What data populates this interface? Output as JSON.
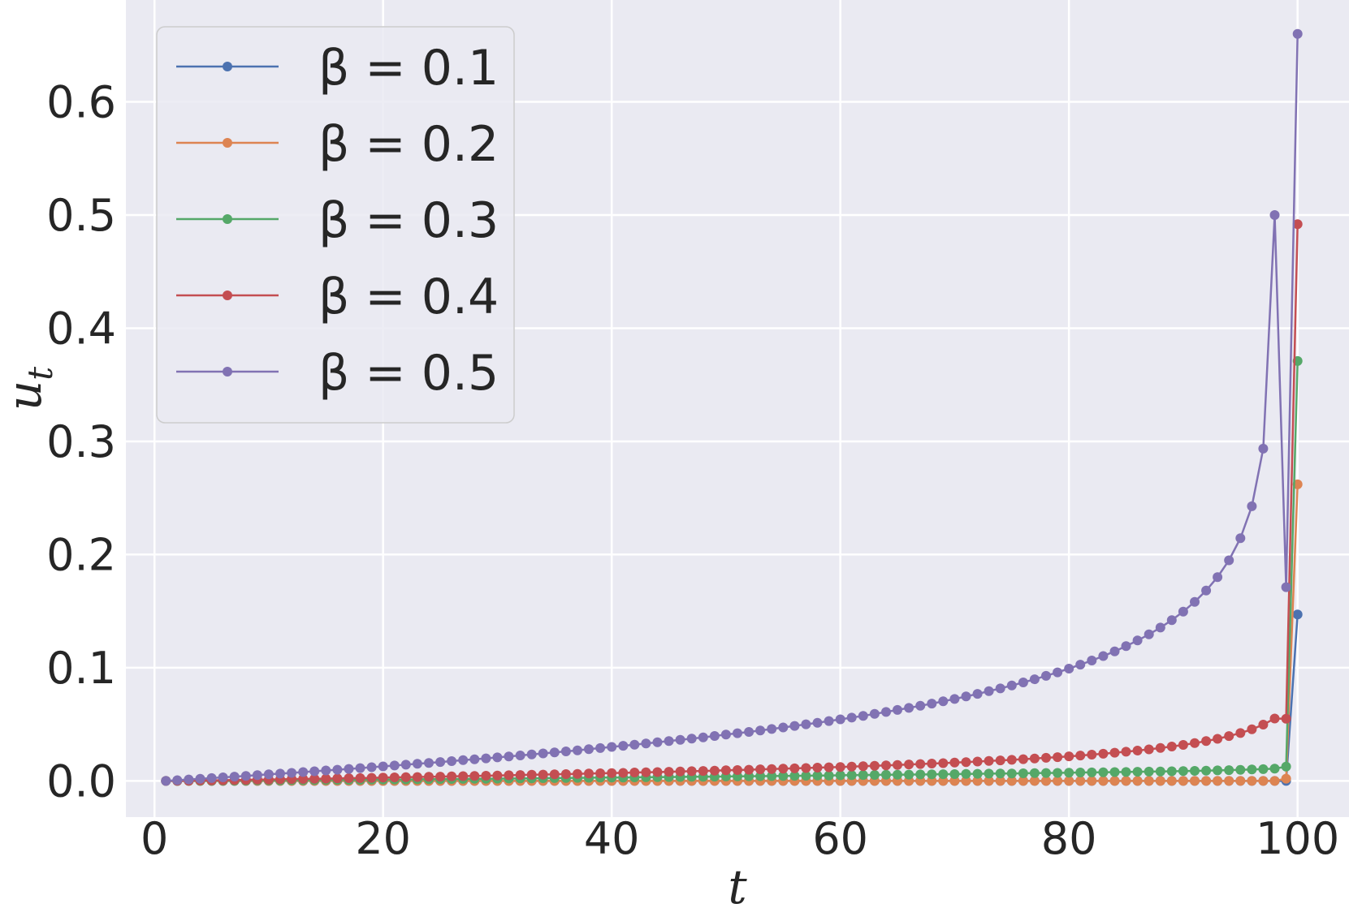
{
  "chart_data": {
    "type": "line",
    "title": "",
    "xlabel": "t",
    "ylabel": "u",
    "ylabel_subscript": "t",
    "xlim": [
      -2.5,
      104.5
    ],
    "ylim": [
      -0.032,
      0.69
    ],
    "xticks": [
      0,
      20,
      40,
      60,
      80,
      100
    ],
    "xtick_labels": [
      "0",
      "20",
      "40",
      "60",
      "80",
      "100"
    ],
    "yticks": [
      0.0,
      0.1,
      0.2,
      0.3,
      0.4,
      0.5,
      0.6
    ],
    "ytick_labels": [
      "0.0",
      "0.1",
      "0.2",
      "0.3",
      "0.4",
      "0.5",
      "0.6"
    ],
    "grid": true,
    "legend_position": "top-left",
    "background": "#eaeaf2",
    "x": [
      1,
      2,
      3,
      4,
      5,
      6,
      7,
      8,
      9,
      10,
      11,
      12,
      13,
      14,
      15,
      16,
      17,
      18,
      19,
      20,
      21,
      22,
      23,
      24,
      25,
      26,
      27,
      28,
      29,
      30,
      31,
      32,
      33,
      34,
      35,
      36,
      37,
      38,
      39,
      40,
      41,
      42,
      43,
      44,
      45,
      46,
      47,
      48,
      49,
      50,
      51,
      52,
      53,
      54,
      55,
      56,
      57,
      58,
      59,
      60,
      61,
      62,
      63,
      64,
      65,
      66,
      67,
      68,
      69,
      70,
      71,
      72,
      73,
      74,
      75,
      76,
      77,
      78,
      79,
      80,
      81,
      82,
      83,
      84,
      85,
      86,
      87,
      88,
      89,
      90,
      91,
      92,
      93,
      94,
      95,
      96,
      97,
      98,
      99,
      100
    ],
    "series": [
      {
        "name": "β = 0.1",
        "color": "#4c72b0",
        "values": [
          0,
          0,
          0,
          0,
          0,
          0,
          0,
          0,
          0,
          0,
          0,
          0,
          0,
          0,
          0,
          0,
          0,
          0,
          0,
          0,
          0,
          0,
          0,
          0,
          0,
          0,
          0,
          0,
          0,
          0,
          0,
          0,
          0,
          0,
          0,
          0,
          0,
          0,
          0,
          0,
          0,
          0,
          0,
          0,
          0,
          0,
          0,
          0,
          0,
          0,
          0,
          0,
          0,
          0,
          0,
          0,
          0,
          0,
          0,
          0,
          0,
          0,
          0,
          0,
          0,
          0,
          0,
          0,
          0,
          0,
          0,
          0,
          0,
          0,
          0,
          0,
          0,
          0,
          0,
          0,
          0,
          0,
          0,
          0,
          0,
          0,
          0,
          0,
          0,
          0,
          0,
          0,
          0,
          0,
          0,
          0,
          0,
          0,
          0,
          0.147
        ]
      },
      {
        "name": "β = 0.2",
        "color": "#dd8452",
        "values": [
          0,
          0,
          0,
          0,
          0,
          0,
          0,
          0,
          0,
          0,
          0,
          0,
          0,
          0,
          0,
          0,
          0,
          0,
          0,
          0,
          0,
          0,
          0,
          0,
          0,
          0,
          0,
          0,
          0,
          0,
          0,
          0,
          0,
          0,
          0,
          0,
          0,
          0,
          0,
          0,
          0,
          0,
          0,
          0,
          0,
          0,
          0,
          0,
          0,
          0,
          0,
          0,
          0,
          0,
          0,
          0,
          0,
          0,
          0,
          0,
          0,
          0,
          0,
          0,
          0,
          0,
          0,
          0,
          0,
          0,
          0,
          0,
          0,
          0,
          0,
          0,
          0,
          0,
          0,
          0,
          0,
          0,
          0,
          0,
          0,
          0,
          0,
          0,
          0,
          0,
          0,
          0,
          0,
          0,
          0,
          0,
          0,
          0,
          0.002,
          0.262
        ]
      },
      {
        "name": "β = 0.3",
        "color": "#55a868",
        "values": [
          0.0,
          0.0,
          0.0001,
          0.0001,
          0.0001,
          0.0002,
          0.0002,
          0.0003,
          0.0004,
          0.0004,
          0.0005,
          0.0006,
          0.0006,
          0.0007,
          0.0008,
          0.0009,
          0.0009,
          0.001,
          0.0011,
          0.0012,
          0.0013,
          0.0013,
          0.0014,
          0.0015,
          0.0016,
          0.0017,
          0.0018,
          0.0019,
          0.0019,
          0.002,
          0.0021,
          0.0022,
          0.0023,
          0.0024,
          0.0025,
          0.0026,
          0.0027,
          0.0028,
          0.0029,
          0.003,
          0.003,
          0.0031,
          0.0032,
          0.0033,
          0.0034,
          0.0035,
          0.0036,
          0.0037,
          0.0038,
          0.0039,
          0.004,
          0.0041,
          0.0042,
          0.0043,
          0.0044,
          0.0045,
          0.0046,
          0.0047,
          0.0048,
          0.005,
          0.0051,
          0.0052,
          0.0053,
          0.0054,
          0.0055,
          0.0056,
          0.0057,
          0.0058,
          0.0059,
          0.006,
          0.0062,
          0.0063,
          0.0064,
          0.0065,
          0.0066,
          0.0067,
          0.0069,
          0.007,
          0.0071,
          0.0072,
          0.0074,
          0.0075,
          0.0076,
          0.0078,
          0.0079,
          0.0081,
          0.0082,
          0.0084,
          0.0085,
          0.0087,
          0.0089,
          0.0091,
          0.0093,
          0.0095,
          0.0098,
          0.0101,
          0.0104,
          0.0109,
          0.0126,
          0.371
        ]
      },
      {
        "name": "β = 0.4",
        "color": "#c44e52",
        "values": [
          0.0,
          0.0001,
          0.0002,
          0.0004,
          0.0005,
          0.0006,
          0.0008,
          0.0009,
          0.0011,
          0.0012,
          0.0014,
          0.0016,
          0.0017,
          0.0019,
          0.002,
          0.0022,
          0.0024,
          0.0025,
          0.0027,
          0.0029,
          0.0031,
          0.0033,
          0.0034,
          0.0036,
          0.0038,
          0.004,
          0.0042,
          0.0044,
          0.0046,
          0.0048,
          0.005,
          0.0052,
          0.0054,
          0.0056,
          0.0058,
          0.006,
          0.0062,
          0.0065,
          0.0067,
          0.0069,
          0.0071,
          0.0074,
          0.0076,
          0.0078,
          0.0081,
          0.0083,
          0.0086,
          0.0088,
          0.0091,
          0.0094,
          0.0096,
          0.0099,
          0.0102,
          0.0105,
          0.0108,
          0.0111,
          0.0114,
          0.0117,
          0.012,
          0.0123,
          0.0127,
          0.013,
          0.0134,
          0.0137,
          0.0141,
          0.0145,
          0.0149,
          0.0153,
          0.0157,
          0.0162,
          0.0166,
          0.0171,
          0.0176,
          0.0181,
          0.0186,
          0.0192,
          0.0198,
          0.0204,
          0.021,
          0.0217,
          0.0224,
          0.0232,
          0.024,
          0.0249,
          0.0258,
          0.0268,
          0.0279,
          0.0291,
          0.0304,
          0.0318,
          0.0334,
          0.0352,
          0.0372,
          0.0396,
          0.0423,
          0.0456,
          0.0497,
          0.0551,
          0.0549,
          0.492
        ]
      },
      {
        "name": "β = 0.5",
        "color": "#8172b3",
        "values": [
          0.0,
          0.0006,
          0.0013,
          0.0019,
          0.0025,
          0.0031,
          0.0038,
          0.0044,
          0.0051,
          0.0058,
          0.0064,
          0.0071,
          0.0078,
          0.0085,
          0.0092,
          0.0099,
          0.0106,
          0.0113,
          0.0121,
          0.0128,
          0.0136,
          0.0143,
          0.0151,
          0.0159,
          0.0167,
          0.0175,
          0.0183,
          0.0191,
          0.0199,
          0.0208,
          0.0216,
          0.0225,
          0.0234,
          0.0243,
          0.0252,
          0.0261,
          0.027,
          0.028,
          0.029,
          0.03,
          0.031,
          0.032,
          0.033,
          0.0341,
          0.0352,
          0.0363,
          0.0374,
          0.0385,
          0.0397,
          0.0409,
          0.0421,
          0.0433,
          0.0446,
          0.0459,
          0.0472,
          0.0486,
          0.05,
          0.0514,
          0.0529,
          0.0544,
          0.0559,
          0.0575,
          0.0592,
          0.0609,
          0.0627,
          0.0645,
          0.0664,
          0.0683,
          0.0703,
          0.0724,
          0.0746,
          0.0769,
          0.0793,
          0.0817,
          0.0843,
          0.087,
          0.0898,
          0.0928,
          0.0959,
          0.0992,
          0.1027,
          0.1064,
          0.1103,
          0.1145,
          0.1191,
          0.1241,
          0.1295,
          0.1355,
          0.1421,
          0.1496,
          0.1582,
          0.1682,
          0.1801,
          0.1949,
          0.2144,
          0.2427,
          0.2936,
          0.5,
          0.1712,
          0.66
        ],
        "values_note": ""
      }
    ]
  }
}
